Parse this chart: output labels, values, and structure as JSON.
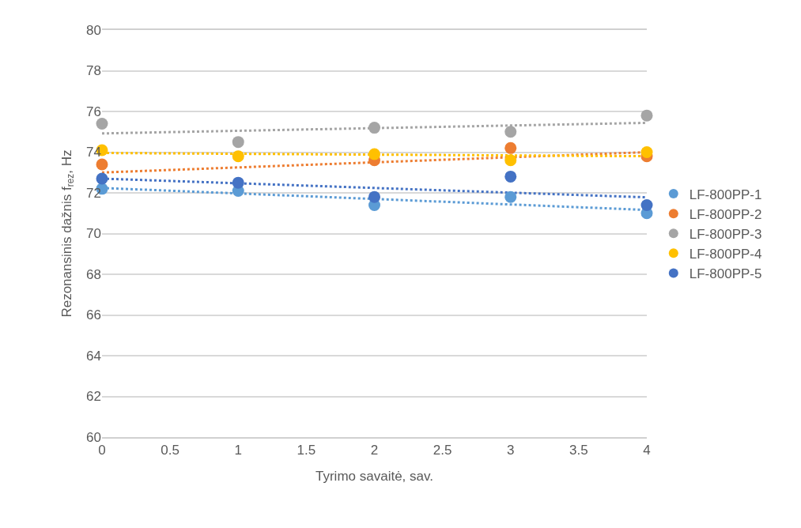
{
  "chart_data": {
    "type": "scatter",
    "xlabel": "Tyrimo savaitė, sav.",
    "ylabel": "Rezonansinis dažnis f$_{rez}$, Hz",
    "x": [
      0,
      1,
      2,
      3,
      4
    ],
    "xlim": [
      0,
      4
    ],
    "xticks": [
      0,
      0.5,
      1,
      1.5,
      2,
      2.5,
      3,
      3.5,
      4
    ],
    "ylim": [
      60,
      80
    ],
    "yticks": [
      60,
      62,
      64,
      66,
      68,
      70,
      72,
      74,
      76,
      78,
      80
    ],
    "grid": "y",
    "legend": "right",
    "marker": "circle",
    "series": [
      {
        "type": "line",
        "line_style": "dotted",
        "marker": "none",
        "color": "#5b9bd5",
        "values": [
          72.24,
          71.97,
          71.7,
          71.43,
          71.16
        ]
      },
      {
        "type": "line",
        "line_style": "dotted",
        "marker": "none",
        "color": "#ed7d31",
        "values": [
          73.0,
          73.25,
          73.5,
          73.75,
          74.0
        ]
      },
      {
        "type": "line",
        "line_style": "dotted",
        "marker": "none",
        "color": "#a5a5a5",
        "values": [
          74.92,
          75.05,
          75.18,
          75.31,
          75.44
        ]
      },
      {
        "type": "line",
        "line_style": "dotted",
        "marker": "none",
        "color": "#ffc000",
        "values": [
          73.96,
          73.92,
          73.88,
          73.84,
          73.8
        ]
      },
      {
        "type": "line",
        "line_style": "dotted",
        "marker": "none",
        "color": "#4472c4",
        "values": [
          72.7,
          72.47,
          72.24,
          72.01,
          71.78
        ]
      },
      {
        "name": "LF-800PP-1",
        "color": "#5b9bd5",
        "values": [
          72.2,
          72.1,
          71.4,
          71.8,
          71.0
        ]
      },
      {
        "name": "LF-800PP-2",
        "color": "#ed7d31",
        "values": [
          73.4,
          null,
          73.6,
          74.2,
          73.8
        ]
      },
      {
        "name": "LF-800PP-3",
        "color": "#a5a5a5",
        "values": [
          75.4,
          74.5,
          75.2,
          75.0,
          75.8
        ]
      },
      {
        "name": "LF-800PP-4",
        "color": "#ffc000",
        "values": [
          74.1,
          73.8,
          73.9,
          73.6,
          74.0
        ]
      },
      {
        "name": "LF-800PP-5",
        "color": "#4472c4",
        "values": [
          72.7,
          72.5,
          71.8,
          72.8,
          71.4
        ]
      }
    ]
  }
}
